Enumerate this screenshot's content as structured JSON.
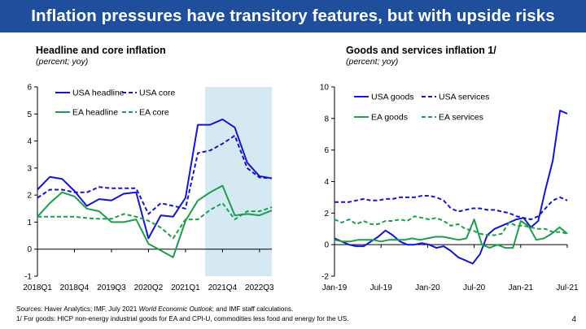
{
  "slide": {
    "title": "Inflation pressures have transitory features, but with upside risks",
    "sources_prefix": "Sources: Haver Analytics; IMF, July 2021 ",
    "sources_italic": "World Economic Outlook",
    "sources_suffix": "; and  IMF staff calculations.",
    "footnote": "1/ For goods: HICP non-energy industrial goods for EA  and CPI-U, commodities less food and energy for the US.",
    "page_number": "4"
  },
  "colors": {
    "usa": "#1414d2",
    "ea": "#1a9e4a",
    "shade": "#d5e9f2",
    "title_bg": "#1f4e9c"
  },
  "chart_data": [
    {
      "type": "line",
      "title": "Headline and core inflation",
      "subtitle": "(percent; yoy)",
      "xlabel": "",
      "ylabel": "",
      "ylim": [
        -1,
        6
      ],
      "yticks": [
        "-1",
        "0",
        "1",
        "2",
        "3",
        "4",
        "5",
        "6"
      ],
      "xticks": [
        "2018Q1",
        "2018Q4",
        "2019Q3",
        "2020Q2",
        "2021Q1",
        "2021Q4",
        "2022Q3"
      ],
      "x_tick_positions": [
        0,
        3,
        6,
        9,
        12,
        15,
        18
      ],
      "x_range": [
        0,
        19
      ],
      "shaded_region": [
        13.6,
        19
      ],
      "legend": "top-left",
      "series": [
        {
          "name": "USA headline",
          "style": "solid",
          "color": "#1414d2",
          "values": [
            2.2,
            2.67,
            2.6,
            2.15,
            1.6,
            1.85,
            1.8,
            2.05,
            2.1,
            0.4,
            1.25,
            1.2,
            1.9,
            4.6,
            4.6,
            4.8,
            4.5,
            3.2,
            2.7,
            2.62
          ]
        },
        {
          "name": "USA core",
          "style": "dashed",
          "color": "#1414d2",
          "values": [
            1.9,
            2.2,
            2.2,
            2.1,
            2.1,
            2.3,
            2.25,
            2.25,
            2.25,
            1.3,
            1.7,
            1.6,
            1.5,
            3.55,
            3.65,
            3.9,
            4.2,
            3.0,
            2.65,
            2.62
          ]
        },
        {
          "name": "EA headline",
          "style": "solid",
          "color": "#1a9e4a",
          "values": [
            1.2,
            1.7,
            2.1,
            1.95,
            1.5,
            1.4,
            1.0,
            1.0,
            1.1,
            0.2,
            -0.05,
            -0.3,
            1.05,
            1.8,
            2.1,
            2.35,
            1.25,
            1.3,
            1.25,
            1.43
          ]
        },
        {
          "name": "EA core",
          "style": "dashed",
          "color": "#1a9e4a",
          "values": [
            1.2,
            1.2,
            1.2,
            1.2,
            1.15,
            1.12,
            1.12,
            1.3,
            1.2,
            1.05,
            0.8,
            0.4,
            1.1,
            1.1,
            1.45,
            1.7,
            1.1,
            1.4,
            1.4,
            1.55
          ]
        }
      ]
    },
    {
      "type": "line",
      "title": "Goods and services inflation 1/",
      "subtitle": "(percent; yoy)",
      "xlabel": "",
      "ylabel": "",
      "ylim": [
        -2,
        10
      ],
      "yticks": [
        "-2",
        "0",
        "2",
        "4",
        "6",
        "8",
        "10"
      ],
      "xticks": [
        "Jan-19",
        "Jul-19",
        "Jan-20",
        "Jul-20",
        "Jan-21",
        "Jul-21"
      ],
      "x_tick_positions": [
        0,
        6,
        12,
        18,
        24,
        30
      ],
      "x_range": [
        0,
        30
      ],
      "legend": "top-left",
      "series": [
        {
          "name": "USA goods",
          "style": "solid",
          "color": "#1414d2",
          "values": [
            0.4,
            0.2,
            0.0,
            -0.1,
            -0.1,
            0.2,
            0.5,
            0.9,
            0.6,
            0.2,
            0.0,
            0.0,
            0.1,
            0.0,
            -0.2,
            -0.1,
            -0.4,
            -0.8,
            -1.0,
            -1.2,
            -0.6,
            0.6,
            1.0,
            1.2,
            1.4,
            1.6,
            1.7,
            1.1,
            1.5,
            3.5,
            5.3,
            8.5,
            8.3
          ]
        },
        {
          "name": "USA services",
          "style": "dashed",
          "color": "#1414d2",
          "values": [
            2.7,
            2.7,
            2.7,
            2.8,
            2.9,
            2.8,
            2.8,
            2.9,
            2.9,
            3.0,
            3.0,
            3.0,
            3.1,
            3.1,
            3.0,
            2.8,
            2.3,
            2.1,
            2.2,
            2.3,
            2.3,
            2.2,
            2.2,
            2.1,
            2.0,
            1.8,
            1.7,
            1.6,
            1.8,
            2.3,
            2.8,
            3.0,
            2.8
          ]
        },
        {
          "name": "EA goods",
          "style": "solid",
          "color": "#1a9e4a",
          "values": [
            0.3,
            0.2,
            0.2,
            0.3,
            0.3,
            0.3,
            0.2,
            0.3,
            0.3,
            0.3,
            0.4,
            0.3,
            0.4,
            0.5,
            0.5,
            0.4,
            0.3,
            0.4,
            1.6,
            0.0,
            -0.2,
            0.0,
            -0.2,
            -0.2,
            1.5,
            1.2,
            0.3,
            0.4,
            0.7,
            1.1,
            0.7
          ]
        },
        {
          "name": "EA services",
          "style": "dashed",
          "color": "#1a9e4a",
          "values": [
            1.6,
            1.4,
            1.6,
            1.3,
            1.5,
            1.3,
            1.3,
            1.5,
            1.5,
            1.6,
            1.5,
            1.8,
            1.7,
            1.6,
            1.7,
            1.5,
            1.2,
            1.3,
            1.0,
            0.9,
            0.7,
            0.6,
            0.6,
            0.7,
            1.4,
            1.2,
            1.2,
            1.1,
            1.0,
            1.0,
            0.8,
            0.8,
            0.7
          ]
        }
      ]
    }
  ]
}
